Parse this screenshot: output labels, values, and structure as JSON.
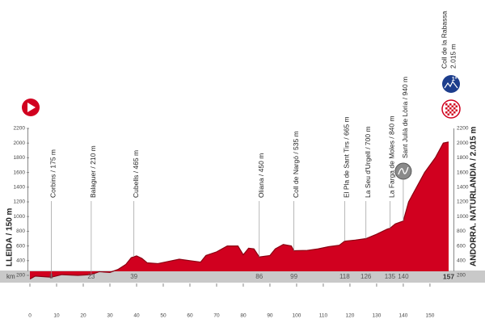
{
  "chart_data": {
    "type": "area",
    "color": "#d1001f",
    "x": [
      0,
      2,
      8,
      12,
      18,
      23,
      26,
      30,
      33,
      36,
      38,
      40,
      42,
      44,
      48,
      52,
      56,
      60,
      64,
      66,
      70,
      74,
      78,
      80,
      82,
      84,
      86,
      90,
      92,
      95,
      98,
      99,
      104,
      108,
      112,
      116,
      118,
      122,
      126,
      130,
      134,
      135,
      137,
      140,
      142,
      145,
      148,
      152,
      155,
      157
    ],
    "values": [
      150,
      190,
      175,
      210,
      200,
      210,
      250,
      240,
      280,
      350,
      440,
      465,
      430,
      370,
      360,
      390,
      420,
      400,
      380,
      470,
      520,
      600,
      600,
      480,
      570,
      560,
      450,
      470,
      560,
      620,
      600,
      535,
      540,
      560,
      590,
      610,
      665,
      680,
      700,
      760,
      830,
      840,
      900,
      940,
      1200,
      1400,
      1600,
      1800,
      2000,
      2015
    ],
    "xlim": [
      0,
      157
    ],
    "xticks": [
      0,
      10,
      20,
      30,
      40,
      50,
      60,
      70,
      80,
      90,
      100,
      110,
      120,
      130,
      140,
      150
    ],
    "ylim": [
      200,
      2200
    ],
    "yticks": [
      200,
      400,
      600,
      800,
      1000,
      1200,
      1400,
      1600,
      1800,
      2000,
      2200
    ],
    "grid": false,
    "distance_label": "km",
    "start_label": "LLEIDA / 150 m",
    "finish_label": "ANDORRA. NATURLANDIA / 2.015 m",
    "summit": {
      "name": "Coll de la Rabassa",
      "elevation": "2.015 m",
      "category": "1ª"
    },
    "annotations": [
      {
        "text": "Corbins / 175 m",
        "x": 8
      },
      {
        "text": "Balaguer / 210 m",
        "x": 23
      },
      {
        "text": "Cubells / 465 m",
        "x": 39
      },
      {
        "text": "Oliana / 450 m",
        "x": 86
      },
      {
        "text": "Coll de Nargó / 535 m",
        "x": 99
      },
      {
        "text": "El Pla de Sant Tirs / 665 m",
        "x": 118
      },
      {
        "text": "La Seu d'Urgell / 700 m",
        "x": 126
      },
      {
        "text": "La Farga de Moles / 840 m",
        "x": 135
      },
      {
        "text": "Sant Julià de Lòria / 940 m",
        "x": 140
      }
    ]
  }
}
